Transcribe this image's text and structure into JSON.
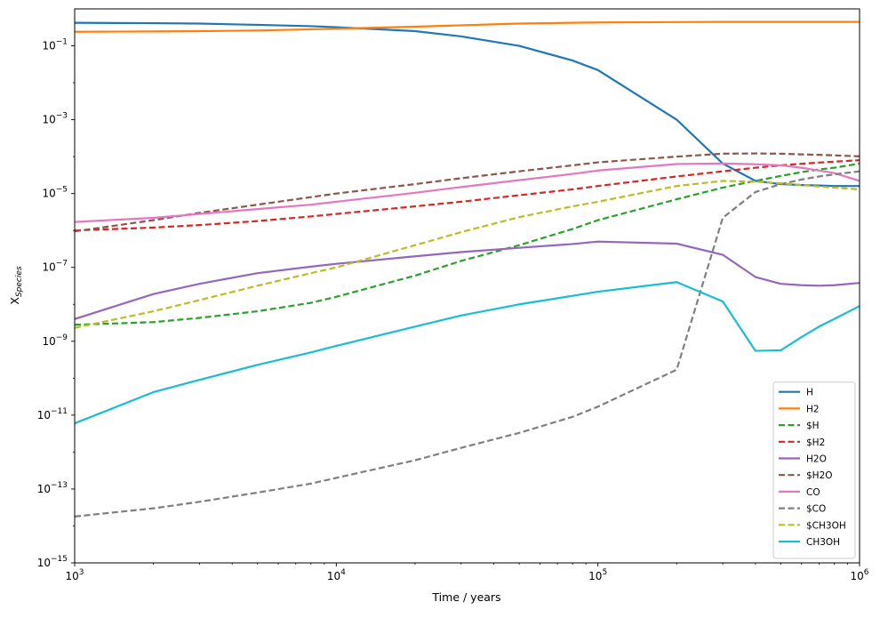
{
  "chart_data": {
    "type": "line",
    "title": "",
    "xlabel": "Time / years",
    "ylabel_main": "X",
    "ylabel_sub": "Species",
    "xscale": "log",
    "yscale": "log",
    "xlim": [
      1000,
      1000000
    ],
    "ylim": [
      1e-15,
      1
    ],
    "x_ticks": [
      {
        "value": 1000,
        "base": "10",
        "exp": "3"
      },
      {
        "value": 10000,
        "base": "10",
        "exp": "4"
      },
      {
        "value": 100000,
        "base": "10",
        "exp": "5"
      },
      {
        "value": 1000000,
        "base": "10",
        "exp": "6"
      }
    ],
    "y_ticks": [
      {
        "value": 1e-15,
        "base": "10",
        "exp": "−15"
      },
      {
        "value": 1e-13,
        "base": "10",
        "exp": "−13"
      },
      {
        "value": 1e-11,
        "base": "10",
        "exp": "−11"
      },
      {
        "value": 1e-09,
        "base": "10",
        "exp": "−9"
      },
      {
        "value": 1e-07,
        "base": "10",
        "exp": "−7"
      },
      {
        "value": 1e-05,
        "base": "10",
        "exp": "−5"
      },
      {
        "value": 0.001,
        "base": "10",
        "exp": "−3"
      },
      {
        "value": 0.1,
        "base": "10",
        "exp": "−1"
      }
    ],
    "legend_position": "bottom-right",
    "x": [
      1000,
      2000,
      3000,
      5000,
      8000,
      10000,
      20000,
      30000,
      50000,
      80000,
      100000,
      200000,
      300000,
      400000,
      500000,
      600000,
      700000,
      800000,
      1000000
    ],
    "series": [
      {
        "name": "H",
        "color": "#1f77b4",
        "dashed": false,
        "values": [
          0.42,
          0.41,
          0.4,
          0.37,
          0.34,
          0.32,
          0.25,
          0.18,
          0.1,
          0.04,
          0.022,
          0.001,
          6.5e-05,
          2.2e-05,
          1.8e-05,
          1.7e-05,
          1.65e-05,
          1.6e-05,
          1.6e-05
        ]
      },
      {
        "name": "H2",
        "color": "#ff7f0e",
        "dashed": false,
        "values": [
          0.24,
          0.245,
          0.25,
          0.26,
          0.28,
          0.29,
          0.33,
          0.36,
          0.4,
          0.42,
          0.43,
          0.44,
          0.445,
          0.445,
          0.445,
          0.445,
          0.445,
          0.445,
          0.445
        ]
      },
      {
        "name": "$H",
        "color": "#2ca02c",
        "dashed": true,
        "values": [
          2.8e-09,
          3.3e-09,
          4.3e-09,
          6.5e-09,
          1.1e-08,
          1.6e-08,
          6e-08,
          1.5e-07,
          4e-07,
          1.1e-06,
          1.9e-06,
          7e-06,
          1.45e-05,
          2.2e-05,
          3e-05,
          3.8e-05,
          4.5e-05,
          5e-05,
          6.5e-05
        ]
      },
      {
        "name": "$H2",
        "color": "#d62728",
        "dashed": true,
        "values": [
          1e-06,
          1.2e-06,
          1.4e-06,
          1.8e-06,
          2.4e-06,
          2.8e-06,
          4.5e-06,
          6e-06,
          9e-06,
          1.3e-05,
          1.6e-05,
          2.9e-05,
          4e-05,
          5e-05,
          5.8e-05,
          6.4e-05,
          6.9e-05,
          7.3e-05,
          8e-05
        ]
      },
      {
        "name": "H2O",
        "color": "#9467bd",
        "dashed": false,
        "values": [
          4e-09,
          1.9e-08,
          3.6e-08,
          7e-08,
          1.05e-07,
          1.25e-07,
          2e-07,
          2.6e-07,
          3.4e-07,
          4.3e-07,
          5e-07,
          4.4e-07,
          2.2e-07,
          5.5e-08,
          3.6e-08,
          3.3e-08,
          3.2e-08,
          3.3e-08,
          3.8e-08
        ]
      },
      {
        "name": "$H2O",
        "color": "#8c564b",
        "dashed": true,
        "values": [
          9.5e-07,
          1.9e-06,
          3e-06,
          5e-06,
          8e-06,
          1e-05,
          1.8e-05,
          2.6e-05,
          4e-05,
          5.8e-05,
          7e-05,
          0.0001,
          0.00012,
          0.000122,
          0.00012,
          0.000115,
          0.000112,
          0.000108,
          0.000102
        ]
      },
      {
        "name": "CO",
        "color": "#e377c2",
        "dashed": false,
        "values": [
          1.7e-06,
          2.2e-06,
          2.8e-06,
          3.8e-06,
          5e-06,
          6e-06,
          1.05e-05,
          1.5e-05,
          2.3e-05,
          3.4e-05,
          4.2e-05,
          6.3e-05,
          6.5e-05,
          6.2e-05,
          5.8e-05,
          5e-05,
          4.2e-05,
          3.6e-05,
          2.2e-05
        ]
      },
      {
        "name": "$CO",
        "color": "#7f7f7f",
        "dashed": true,
        "values": [
          1.8e-14,
          3e-14,
          4.5e-14,
          8e-14,
          1.4e-13,
          2e-13,
          6e-13,
          1.3e-12,
          3.3e-12,
          9e-12,
          1.7e-11,
          1.7e-10,
          2.2e-06,
          1.1e-05,
          1.8e-05,
          2.4e-05,
          2.9e-05,
          3.3e-05,
          4e-05
        ]
      },
      {
        "name": "$CH3OH",
        "color": "#bcbd22",
        "dashed": true,
        "values": [
          2.3e-09,
          6.5e-09,
          1.3e-08,
          3.2e-08,
          7e-08,
          1e-07,
          4e-07,
          9e-07,
          2.3e-06,
          4.5e-06,
          6e-06,
          1.6e-05,
          2.2e-05,
          2.1e-05,
          1.9e-05,
          1.7e-05,
          1.55e-05,
          1.45e-05,
          1.3e-05
        ]
      },
      {
        "name": "CH3OH",
        "color": "#17becf",
        "dashed": false,
        "values": [
          6e-12,
          4.2e-11,
          9e-11,
          2.3e-10,
          5e-10,
          7.5e-10,
          2.5e-09,
          5e-09,
          1e-08,
          1.7e-08,
          2.2e-08,
          4e-08,
          1.2e-08,
          5.5e-10,
          5.7e-10,
          1.3e-09,
          2.5e-09,
          4e-09,
          9e-09
        ]
      }
    ]
  }
}
